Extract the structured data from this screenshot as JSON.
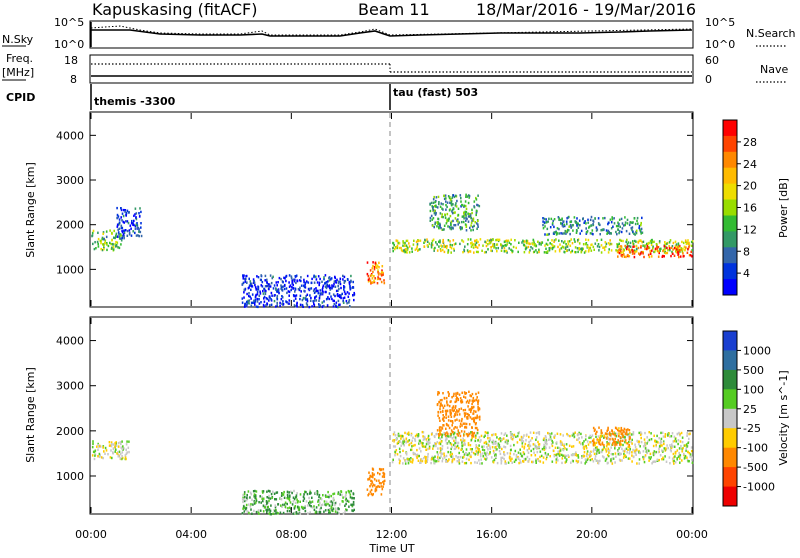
{
  "header": {
    "station": "Kapuskasing (fitACF)",
    "beam": "Beam 11",
    "date_range": "18/Mar/2016 - 19/Mar/2016"
  },
  "summary_panels": {
    "nsky_label": "N.Sky",
    "nsearch_label": "N.Search",
    "noise_ticks_left": [
      "10^5",
      "10^0"
    ],
    "noise_ticks_right": [
      "10^5",
      "10^0"
    ],
    "freq_label_1": "Freq.",
    "freq_label_2": "[MHz]",
    "freq_ticks": [
      "18",
      "8"
    ],
    "nave_label": "Nave",
    "nave_ticks": [
      "60",
      "0"
    ],
    "cpid_label": "CPID",
    "cpid_1": "themis -3300",
    "cpid_2": "tau (fast) 503"
  },
  "axes": {
    "y_label": "Slant Range [km]",
    "y_ticks": [
      "4000",
      "3000",
      "2000",
      "1000"
    ],
    "x_label": "Time UT",
    "x_ticks": [
      "00:00",
      "04:00",
      "08:00",
      "12:00",
      "16:00",
      "20:00",
      "00:00"
    ]
  },
  "power_colorbar": {
    "label": "Power [dB]",
    "ticks": [
      "28",
      "24",
      "20",
      "16",
      "12",
      "8",
      "4"
    ],
    "colors": [
      "#ff0000",
      "#ff4400",
      "#ff8800",
      "#ffbb00",
      "#eedd00",
      "#99dd00",
      "#33bb33",
      "#339966",
      "#3366aa",
      "#0033dd",
      "#0000ff"
    ]
  },
  "velocity_colorbar": {
    "label": "Velocity [m s^-1]",
    "ticks": [
      "1000",
      "500",
      "100",
      "25",
      "-25",
      "-100",
      "-500",
      "-1000"
    ],
    "colors": [
      "#1a3fd0",
      "#2f6fa0",
      "#2e8b3a",
      "#55cc22",
      "#c8c8c8",
      "#ffcc00",
      "#ff8800",
      "#ff4400",
      "#ee0000"
    ]
  },
  "chart_data": {
    "type": "heatmap",
    "x_range_hours": [
      0,
      24
    ],
    "y_range_km": [
      180,
      4500
    ],
    "cpid_change_hour": 12.0,
    "power_regions": [
      {
        "t0": 0.0,
        "t1": 1.2,
        "r0": 1450,
        "r1": 1900,
        "value_db": 14
      },
      {
        "t0": 1.0,
        "t1": 2.0,
        "r0": 1700,
        "r1": 2400,
        "value_db": 6
      },
      {
        "t0": 11.0,
        "t1": 11.7,
        "r0": 700,
        "r1": 1200,
        "value_db": 24
      },
      {
        "t0": 12.0,
        "t1": 24.0,
        "r0": 1400,
        "r1": 1700,
        "value_db": 16
      },
      {
        "t0": 21.0,
        "t1": 24.0,
        "r0": 1300,
        "r1": 1550,
        "value_db": 26
      },
      {
        "t0": 13.5,
        "t1": 15.5,
        "r0": 1900,
        "r1": 2700,
        "value_db": 12
      },
      {
        "t0": 18.0,
        "t1": 22.0,
        "r0": 1800,
        "r1": 2200,
        "value_db": 10
      },
      {
        "t0": 6.0,
        "t1": 10.5,
        "r0": 180,
        "r1": 900,
        "value_db": 5
      }
    ],
    "velocity_regions": [
      {
        "t0": 0.0,
        "t1": 1.5,
        "r0": 1400,
        "r1": 1800,
        "value_ms": 0
      },
      {
        "t0": 11.0,
        "t1": 11.7,
        "r0": 600,
        "r1": 1200,
        "value_ms": -200
      },
      {
        "t0": 12.0,
        "t1": 24.0,
        "r0": 1300,
        "r1": 2000,
        "value_ms": 0
      },
      {
        "t0": 13.8,
        "t1": 15.5,
        "r0": 1900,
        "r1": 2900,
        "value_ms": -400
      },
      {
        "t0": 20.0,
        "t1": 21.5,
        "r0": 1700,
        "r1": 2100,
        "value_ms": -150
      },
      {
        "t0": 6.0,
        "t1": 10.5,
        "r0": 180,
        "r1": 700,
        "value_ms": 60
      }
    ]
  }
}
